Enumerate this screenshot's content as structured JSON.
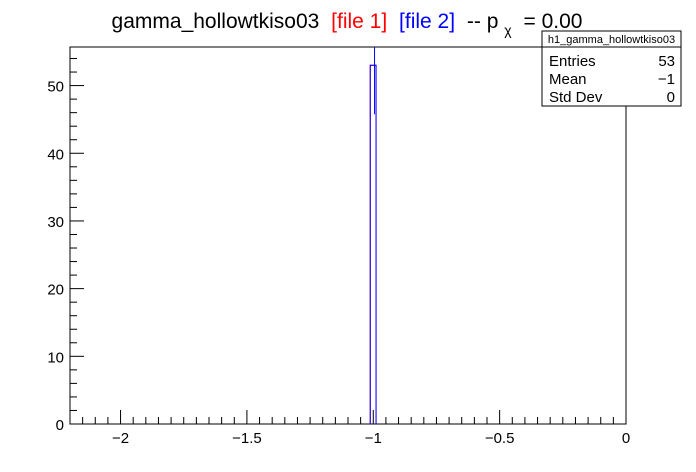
{
  "chart_data": {
    "type": "bar",
    "title": {
      "name": "gamma_hollowtkiso03",
      "file1": "[file 1]",
      "file2": "[file 2]",
      "suffix_pre": "-- p",
      "suffix_sub": "χ",
      "suffix_post": "= 0.00"
    },
    "colors": {
      "file1": "#ff0000",
      "file2": "#0000ff",
      "axis": "#000000"
    },
    "xlim": [
      -2.2,
      0
    ],
    "ylim": [
      0,
      55.7
    ],
    "x_ticks": [
      {
        "value": -2,
        "label": "−2"
      },
      {
        "value": -1.5,
        "label": "−1.5"
      },
      {
        "value": -1,
        "label": "−1"
      },
      {
        "value": -0.5,
        "label": "−0.5"
      },
      {
        "value": 0,
        "label": "0"
      }
    ],
    "y_ticks": [
      {
        "value": 0,
        "label": "0"
      },
      {
        "value": 10,
        "label": "10"
      },
      {
        "value": 20,
        "label": "20"
      },
      {
        "value": 30,
        "label": "30"
      },
      {
        "value": 40,
        "label": "40"
      },
      {
        "value": 50,
        "label": "50"
      }
    ],
    "series": [
      {
        "name": "file 1",
        "color": "#ff0000",
        "bins": [
          {
            "x0": -1.012,
            "x1": -0.989,
            "y": 53
          }
        ]
      },
      {
        "name": "file 2",
        "color": "#0000ff",
        "bins": [
          {
            "x0": -1.012,
            "x1": -0.989,
            "y": 53
          }
        ]
      }
    ],
    "file2_marker": {
      "x": -0.995,
      "y": 53
    },
    "legend": "top-right"
  },
  "stats": {
    "title": "h1_gamma_hollowtkiso03",
    "rows": [
      {
        "label": "Entries",
        "value": "53"
      },
      {
        "label": "Mean",
        "value": "−1"
      },
      {
        "label": "Std Dev",
        "value": "0"
      }
    ]
  }
}
